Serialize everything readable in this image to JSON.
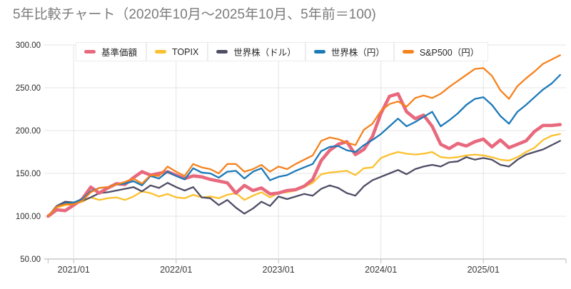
{
  "title": "5年比較チャート（2020年10月～2025年10月、5年前＝100)",
  "chart_data": {
    "type": "line",
    "title": "5年比較チャート（2020年10月～2025年10月、5年前＝100)",
    "subtitle": "",
    "xlabel": "",
    "ylabel": "",
    "ylim": [
      50,
      300
    ],
    "grid": true,
    "legend_position": "top-left",
    "background_color": "#ffffff",
    "grid_color": "#e4e4e4",
    "axis_line_color": "#aeaeae",
    "tick_color": "#bdbdbd",
    "title_color": "#7b7b7b",
    "base_value_note": "5年前＝100",
    "y_ticks": [
      300,
      250,
      200,
      150,
      100,
      50
    ],
    "y_tick_labels": [
      "300.00",
      "250.00",
      "200.00",
      "150.00",
      "100.00",
      "50.00"
    ],
    "x_tick_labels": [
      "2021/01",
      "2022/01",
      "2023/01",
      "2024/01",
      "2025/01"
    ],
    "x_tick_month_indices": [
      3,
      15,
      27,
      39,
      51
    ],
    "x": [
      "2020/10",
      "2020/11",
      "2020/12",
      "2021/01",
      "2021/02",
      "2021/03",
      "2021/04",
      "2021/05",
      "2021/06",
      "2021/07",
      "2021/08",
      "2021/09",
      "2021/10",
      "2021/11",
      "2021/12",
      "2022/01",
      "2022/02",
      "2022/03",
      "2022/04",
      "2022/05",
      "2022/06",
      "2022/07",
      "2022/08",
      "2022/09",
      "2022/10",
      "2022/11",
      "2022/12",
      "2023/01",
      "2023/02",
      "2023/03",
      "2023/04",
      "2023/05",
      "2023/06",
      "2023/07",
      "2023/08",
      "2023/09",
      "2023/10",
      "2023/11",
      "2023/12",
      "2024/01",
      "2024/02",
      "2024/03",
      "2024/04",
      "2024/05",
      "2024/06",
      "2024/07",
      "2024/08",
      "2024/09",
      "2024/10",
      "2024/11",
      "2024/12",
      "2025/01",
      "2025/02",
      "2025/03",
      "2025/04",
      "2025/05",
      "2025/06",
      "2025/07",
      "2025/08",
      "2025/09",
      "2025/10"
    ],
    "series": [
      {
        "name": "TOPIX",
        "id": "topix",
        "color": "#FBC02D",
        "stroke_width": 2.3,
        "values": [
          100,
          110,
          113,
          114,
          117,
          122,
          119,
          121,
          122,
          119,
          123,
          129,
          127,
          123,
          126,
          122,
          121,
          125,
          122,
          123,
          121,
          125,
          127,
          119,
          124,
          128,
          122,
          127,
          128,
          130,
          134,
          139,
          149,
          151,
          152,
          153,
          148,
          156,
          157,
          168,
          172,
          175,
          173,
          172,
          173,
          175,
          169,
          168,
          169,
          171,
          172,
          171,
          169,
          166,
          165,
          169,
          175,
          180,
          189,
          194,
          196
        ]
      },
      {
        "name": "世界株（ドル）",
        "id": "world-usd",
        "color": "#4E4D66",
        "stroke_width": 2.3,
        "values": [
          100,
          112,
          117,
          116,
          118,
          122,
          127,
          128,
          130,
          132,
          134,
          129,
          136,
          133,
          139,
          134,
          130,
          134,
          122,
          121,
          113,
          119,
          110,
          103,
          109,
          117,
          112,
          123,
          120,
          123,
          126,
          124,
          132,
          136,
          133,
          127,
          124,
          135,
          142,
          146,
          150,
          154,
          149,
          155,
          158,
          160,
          158,
          163,
          164,
          169,
          166,
          168,
          166,
          160,
          158,
          166,
          172,
          175,
          178,
          183,
          188
        ]
      },
      {
        "name": "基準価額",
        "id": "fund-nav",
        "color": "#E8697D",
        "stroke_width": 4.6,
        "values": [
          100,
          107.5,
          106.5,
          113,
          120,
          134,
          127,
          133,
          138,
          137,
          145,
          152,
          148,
          150,
          152,
          148,
          144,
          147,
          146,
          143,
          141,
          139,
          127,
          136,
          130,
          133,
          126,
          127,
          130,
          131,
          135,
          143,
          165,
          177,
          184,
          187,
          172,
          178,
          193,
          220,
          240,
          243,
          222,
          214,
          218,
          205,
          184,
          179,
          185,
          182,
          187,
          190,
          181,
          189,
          180,
          184,
          188,
          199,
          206,
          206,
          207
        ]
      },
      {
        "name": "世界株（円）",
        "id": "world-jpy",
        "color": "#1B79B8",
        "stroke_width": 2.3,
        "values": [
          100,
          111,
          115,
          116,
          120,
          129,
          133,
          134,
          137,
          138,
          141,
          136,
          147,
          144,
          152,
          147,
          143,
          156,
          151,
          150,
          145,
          152,
          153,
          144,
          152,
          156,
          142,
          146,
          148,
          153,
          157,
          161,
          176,
          181,
          182,
          177,
          175,
          183,
          189,
          196,
          205,
          214,
          205,
          210,
          216,
          222,
          205,
          212,
          220,
          230,
          237,
          239,
          230,
          217,
          208,
          222,
          230,
          239,
          248,
          255,
          265
        ]
      },
      {
        "name": "S&P500（円）",
        "id": "sp500-jpy",
        "color": "#F6821E",
        "stroke_width": 2.3,
        "values": [
          100,
          111,
          114,
          114,
          118,
          128,
          133,
          134,
          137,
          140,
          144,
          138,
          148,
          147,
          158,
          152,
          147,
          161,
          157,
          155,
          150,
          161,
          161,
          152,
          155,
          160,
          152,
          158,
          155,
          161,
          166,
          171,
          188,
          192,
          190,
          186,
          183,
          201,
          208,
          223,
          231,
          234,
          228,
          238,
          241,
          238,
          243,
          251,
          258,
          265,
          272,
          273,
          264,
          247,
          237,
          252,
          261,
          269,
          278,
          283,
          288
        ]
      }
    ],
    "legend_order": [
      "基準価額",
      "TOPIX",
      "世界株（ドル）",
      "世界株（円）",
      "S&P500（円）"
    ]
  }
}
